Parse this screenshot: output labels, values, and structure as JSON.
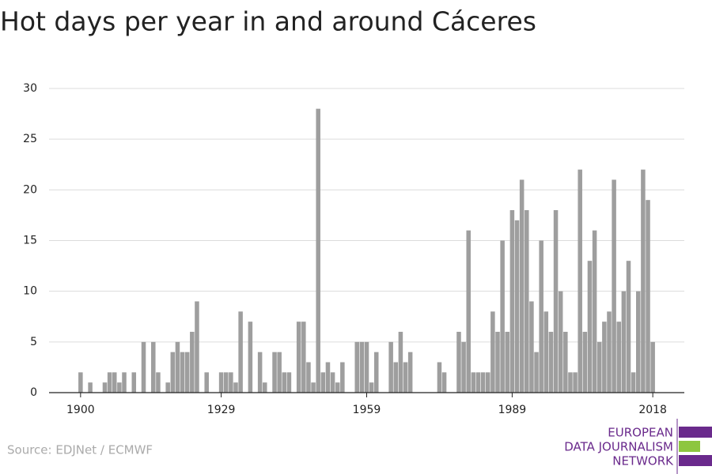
{
  "chart_data": {
    "type": "bar",
    "title": "Hot days per year in and around Cáceres",
    "source": "Source: EDJNet / ECMWF",
    "logo": [
      "EUROPEAN",
      "DATA JOURNALISM",
      "NETWORK"
    ],
    "color": "#9e9e9e",
    "grid": true,
    "x": [
      1900,
      1901,
      1902,
      1903,
      1904,
      1905,
      1906,
      1907,
      1908,
      1909,
      1910,
      1911,
      1912,
      1913,
      1914,
      1915,
      1916,
      1917,
      1918,
      1919,
      1920,
      1921,
      1922,
      1923,
      1924,
      1925,
      1926,
      1927,
      1928,
      1929,
      1930,
      1931,
      1932,
      1933,
      1934,
      1935,
      1936,
      1937,
      1938,
      1939,
      1940,
      1941,
      1942,
      1943,
      1944,
      1945,
      1946,
      1947,
      1948,
      1949,
      1950,
      1951,
      1952,
      1953,
      1954,
      1955,
      1956,
      1957,
      1958,
      1959,
      1960,
      1961,
      1962,
      1963,
      1964,
      1965,
      1966,
      1967,
      1968,
      1969,
      1970,
      1971,
      1972,
      1973,
      1974,
      1975,
      1976,
      1977,
      1978,
      1979,
      1980,
      1981,
      1982,
      1983,
      1984,
      1985,
      1986,
      1987,
      1988,
      1989,
      1990,
      1991,
      1992,
      1993,
      1994,
      1995,
      1996,
      1997,
      1998,
      1999,
      2000,
      2001,
      2002,
      2003,
      2004,
      2005,
      2006,
      2007,
      2008,
      2009,
      2010,
      2011,
      2012,
      2013,
      2014,
      2015,
      2016,
      2017,
      2018
    ],
    "values": [
      2,
      0,
      1,
      0,
      0,
      1,
      2,
      2,
      1,
      2,
      0,
      2,
      0,
      5,
      0,
      5,
      2,
      0,
      1,
      4,
      5,
      4,
      4,
      6,
      9,
      0,
      2,
      0,
      0,
      2,
      2,
      2,
      1,
      8,
      0,
      7,
      0,
      4,
      1,
      0,
      4,
      4,
      2,
      2,
      0,
      7,
      7,
      3,
      1,
      28,
      2,
      3,
      2,
      1,
      3,
      0,
      0,
      5,
      5,
      5,
      1,
      4,
      0,
      0,
      5,
      3,
      6,
      3,
      4,
      0,
      0,
      0,
      0,
      0,
      3,
      2,
      0,
      0,
      6,
      5,
      16,
      2,
      2,
      2,
      2,
      8,
      6,
      15,
      6,
      18,
      17,
      21,
      18,
      9,
      4,
      15,
      8,
      6,
      18,
      10,
      6,
      2,
      2,
      22,
      6,
      13,
      16,
      5,
      7,
      8,
      21,
      7,
      10,
      13,
      2,
      10,
      22,
      19,
      5
    ],
    "xlim": [
      1893.5,
      2024.5
    ],
    "xticks": [
      1900,
      1929,
      1959,
      1989,
      2018
    ],
    "ylim": [
      0,
      30
    ],
    "yticks": [
      0,
      5,
      10,
      15,
      20,
      25,
      30
    ]
  }
}
